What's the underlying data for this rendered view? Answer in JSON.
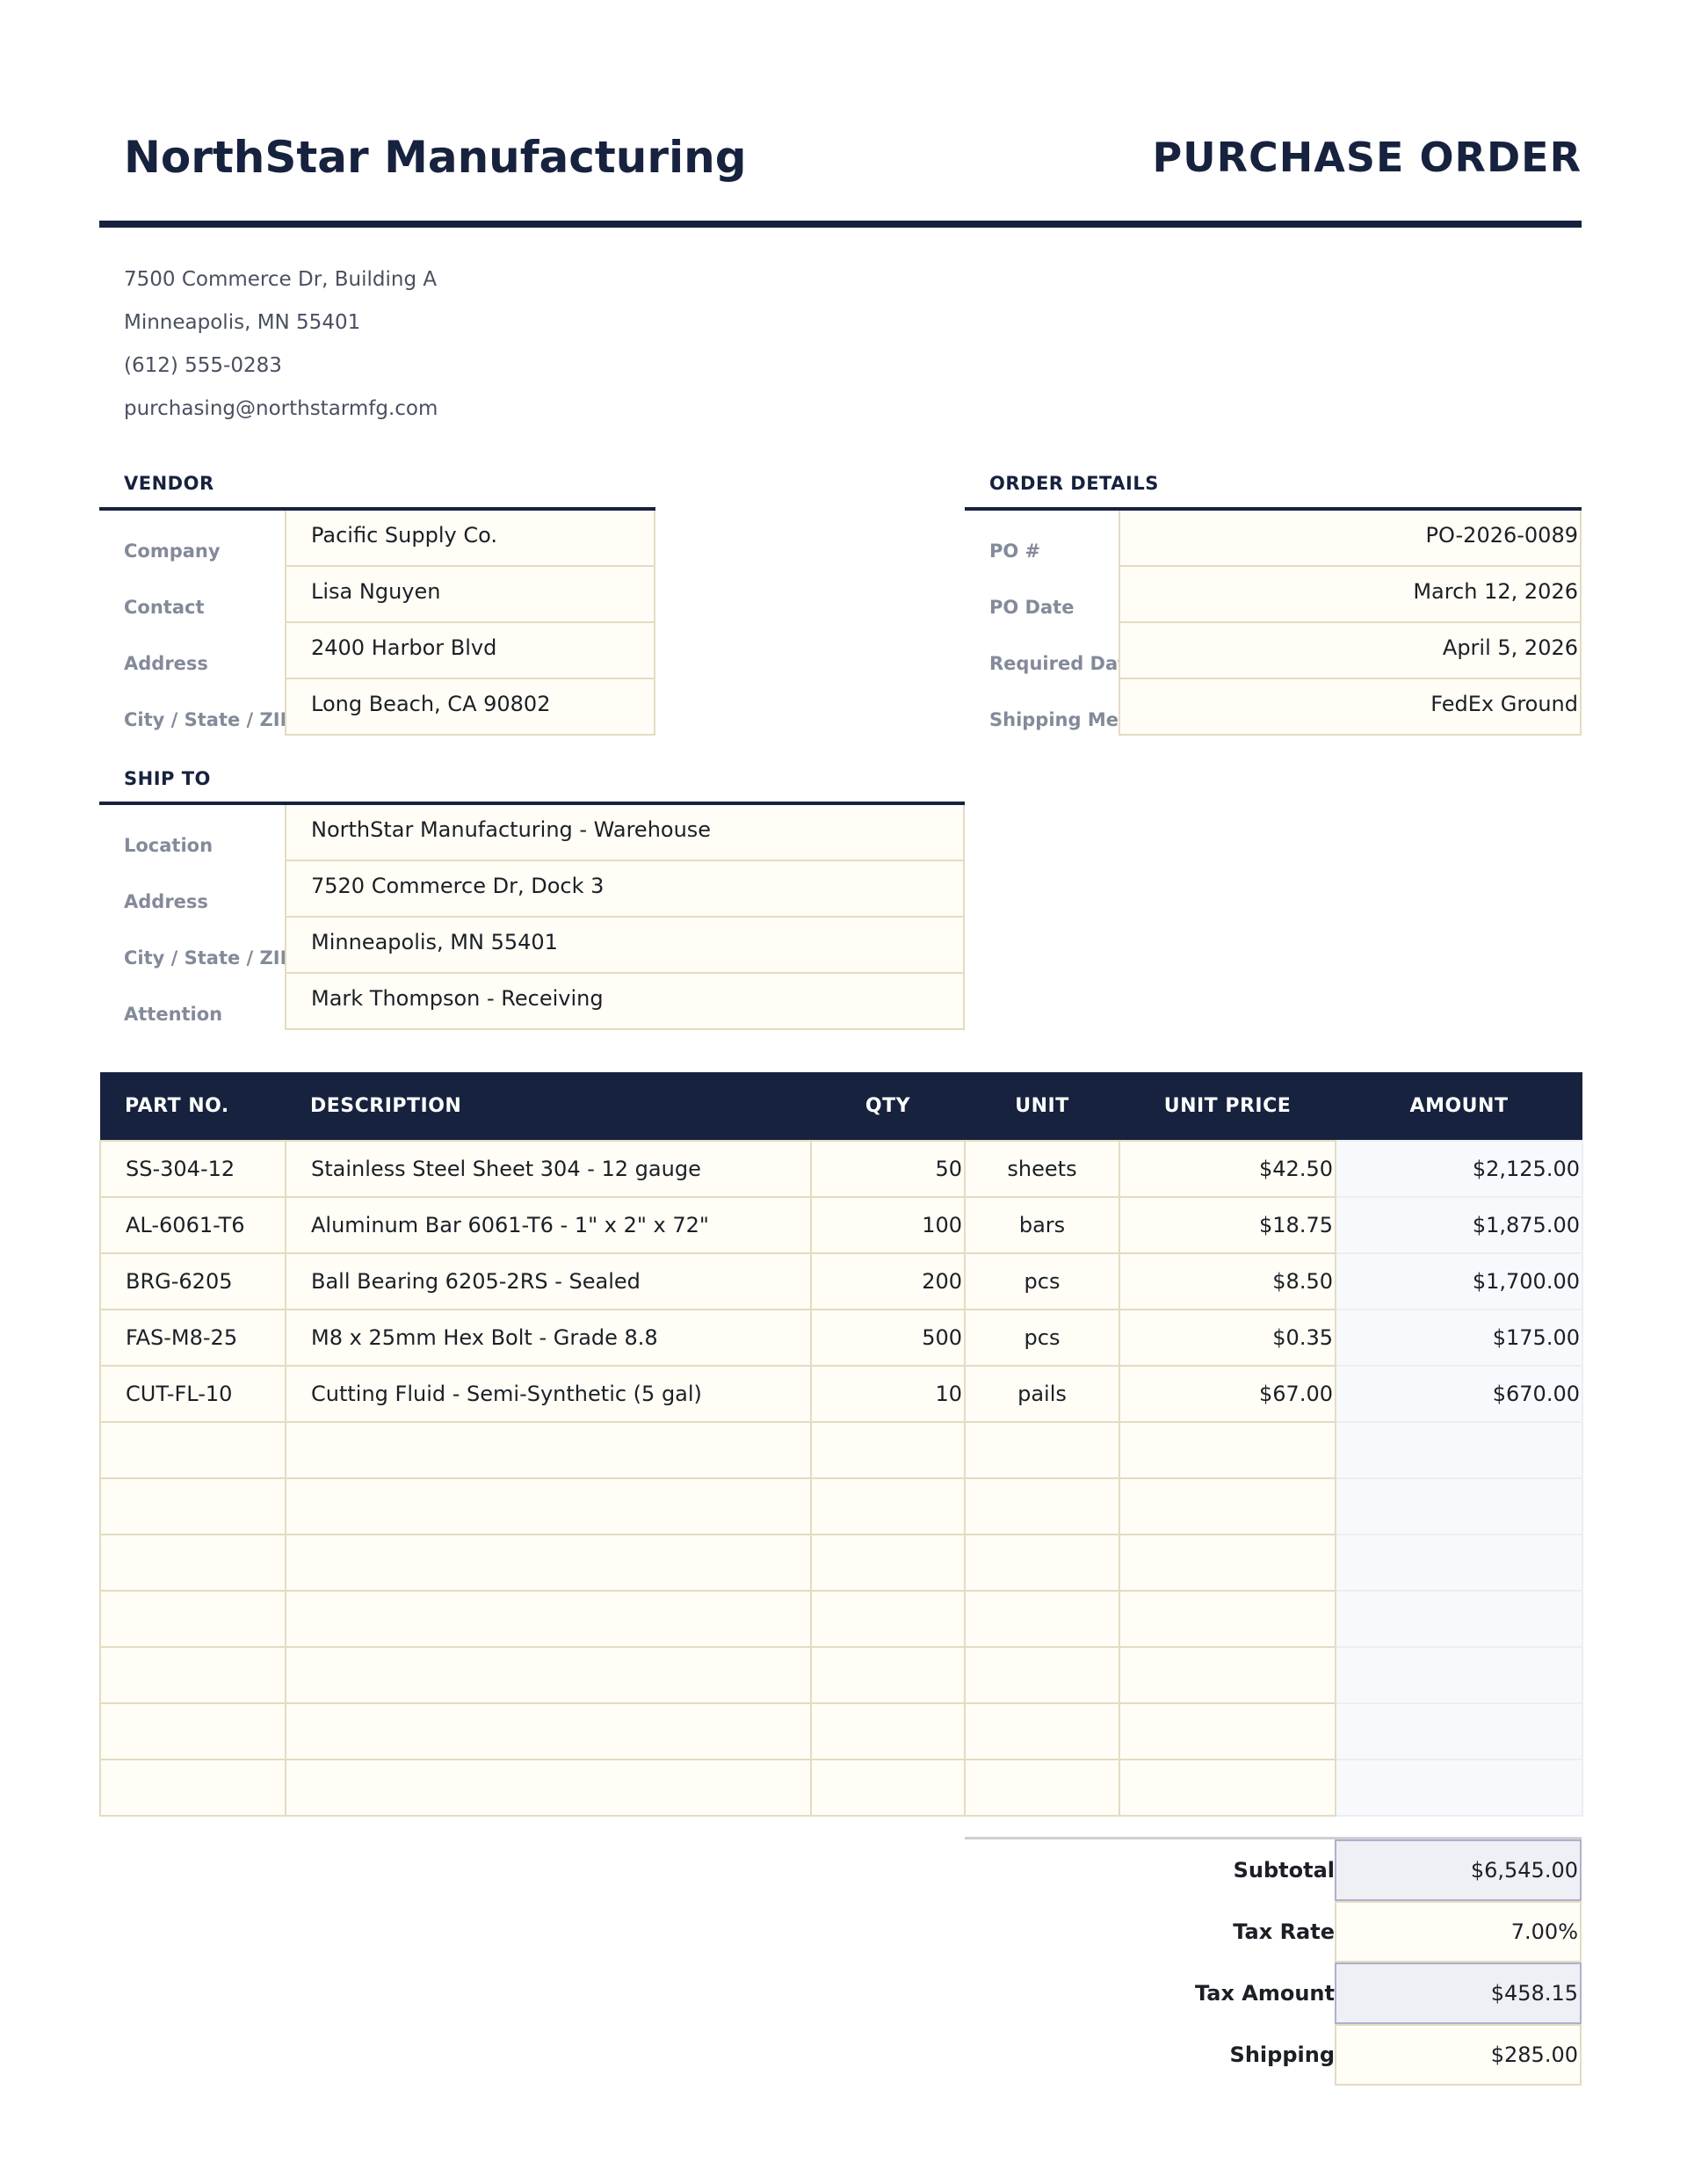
{
  "company": {
    "name": "NorthStar Manufacturing",
    "address_lines": [
      "7500 Commerce Dr, Building A",
      "Minneapolis, MN 55401",
      "(612) 555-0283",
      "purchasing@northstarmfg.com"
    ]
  },
  "doc_title": "PURCHASE ORDER",
  "vendor": {
    "heading": "VENDOR",
    "fields": [
      {
        "label": "Company",
        "value": "Pacific Supply Co."
      },
      {
        "label": "Contact",
        "value": "Lisa Nguyen"
      },
      {
        "label": "Address",
        "value": "2400 Harbor Blvd"
      },
      {
        "label": "City / State / ZIP",
        "value": "Long Beach, CA 90802"
      }
    ]
  },
  "order": {
    "heading": "ORDER DETAILS",
    "fields": [
      {
        "label": "PO #",
        "value": "PO-2026-0089"
      },
      {
        "label": "PO Date",
        "value": "March 12, 2026"
      },
      {
        "label": "Required Date",
        "value": "April 5, 2026"
      },
      {
        "label": "Shipping Method",
        "value": "FedEx Ground"
      }
    ]
  },
  "ship_to": {
    "heading": "SHIP TO",
    "fields": [
      {
        "label": "Location",
        "value": "NorthStar Manufacturing - Warehouse"
      },
      {
        "label": "Address",
        "value": "7520 Commerce Dr, Dock 3"
      },
      {
        "label": "City / State / ZIP",
        "value": "Minneapolis, MN 55401"
      },
      {
        "label": "Attention",
        "value": "Mark Thompson - Receiving"
      }
    ]
  },
  "items": {
    "headers": [
      "PART NO.",
      "DESCRIPTION",
      "QTY",
      "UNIT",
      "UNIT PRICE",
      "AMOUNT"
    ],
    "rows": [
      [
        "SS-304-12",
        "Stainless Steel Sheet 304 - 12 gauge",
        "50",
        "sheets",
        "$42.50",
        "$2,125.00"
      ],
      [
        "AL-6061-T6",
        "Aluminum Bar 6061-T6 - 1\" x 2\" x 72\"",
        "100",
        "bars",
        "$18.75",
        "$1,875.00"
      ],
      [
        "BRG-6205",
        "Ball Bearing 6205-2RS - Sealed",
        "200",
        "pcs",
        "$8.50",
        "$1,700.00"
      ],
      [
        "FAS-M8-25",
        "M8 x 25mm Hex Bolt - Grade 8.8",
        "500",
        "pcs",
        "$0.35",
        "$175.00"
      ],
      [
        "CUT-FL-10",
        "Cutting Fluid - Semi-Synthetic (5 gal)",
        "10",
        "pails",
        "$67.00",
        "$670.00"
      ],
      [
        "",
        "",
        "",
        "",
        "",
        ""
      ],
      [
        "",
        "",
        "",
        "",
        "",
        ""
      ],
      [
        "",
        "",
        "",
        "",
        "",
        ""
      ],
      [
        "",
        "",
        "",
        "",
        "",
        ""
      ],
      [
        "",
        "",
        "",
        "",
        "",
        ""
      ],
      [
        "",
        "",
        "",
        "",
        "",
        ""
      ],
      [
        "",
        "",
        "",
        "",
        "",
        ""
      ]
    ]
  },
  "totals": [
    {
      "label": "Subtotal",
      "value": "$6,545.00",
      "kind": "calc"
    },
    {
      "label": "Tax Rate",
      "value": "7.00%",
      "kind": "inp"
    },
    {
      "label": "Tax Amount",
      "value": "$458.15",
      "kind": "calc"
    },
    {
      "label": "Shipping",
      "value": "$285.00",
      "kind": "inp"
    }
  ],
  "colors": {
    "navy": "#16223e",
    "input_bg": "#fffdf5",
    "calc_bg": "#eef0f5"
  }
}
